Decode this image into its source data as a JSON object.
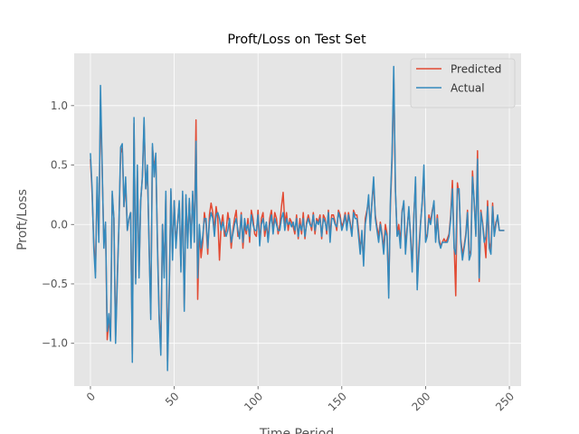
{
  "chart_data": {
    "type": "line",
    "title": "Proft/Loss on Test Set",
    "x_label": "Time Period",
    "y_label": "Proft/Loss",
    "x": [
      0,
      1,
      2,
      3,
      4,
      5,
      6,
      7,
      8,
      9,
      10,
      11,
      12,
      13,
      14,
      15,
      16,
      17,
      18,
      19,
      20,
      21,
      22,
      23,
      24,
      25,
      26,
      27,
      28,
      29,
      30,
      31,
      32,
      33,
      34,
      35,
      36,
      37,
      38,
      39,
      40,
      41,
      42,
      43,
      44,
      45,
      46,
      47,
      48,
      49,
      50,
      51,
      52,
      53,
      54,
      55,
      56,
      57,
      58,
      59,
      60,
      61,
      62,
      63,
      64,
      65,
      66,
      67,
      68,
      69,
      70,
      71,
      72,
      73,
      74,
      75,
      76,
      77,
      78,
      79,
      80,
      81,
      82,
      83,
      84,
      85,
      86,
      87,
      88,
      89,
      90,
      91,
      92,
      93,
      94,
      95,
      96,
      97,
      98,
      99,
      100,
      101,
      102,
      103,
      104,
      105,
      106,
      107,
      108,
      109,
      110,
      111,
      112,
      113,
      114,
      115,
      116,
      117,
      118,
      119,
      120,
      121,
      122,
      123,
      124,
      125,
      126,
      127,
      128,
      129,
      130,
      131,
      132,
      133,
      134,
      135,
      136,
      137,
      138,
      139,
      140,
      141,
      142,
      143,
      144,
      145,
      146,
      147,
      148,
      149,
      150,
      151,
      152,
      153,
      154,
      155,
      156,
      157,
      158,
      159,
      160,
      161,
      162,
      163,
      164,
      165,
      166,
      167,
      168,
      169,
      170,
      171,
      172,
      173,
      174,
      175,
      176,
      177,
      178,
      179,
      180,
      181,
      182,
      183,
      184,
      185,
      186,
      187,
      188,
      189,
      190,
      191,
      192,
      193,
      194,
      195,
      196,
      197,
      198,
      199,
      200,
      201,
      202,
      203,
      204,
      205,
      206,
      207,
      208,
      209,
      210,
      211,
      212,
      213,
      214,
      215,
      216,
      217,
      218,
      219,
      220,
      221,
      222,
      223,
      224,
      225,
      226,
      227,
      228,
      229,
      230,
      231,
      232,
      233,
      234,
      235,
      236,
      237,
      238,
      239,
      240,
      241,
      242,
      243,
      244,
      245,
      246,
      247
    ],
    "series": [
      {
        "name": "Predicted",
        "color": "#E24A33",
        "values": [
          0.55,
          0.25,
          -0.15,
          -0.4,
          0.35,
          -0.1,
          1.05,
          0.45,
          -0.15,
          0.0,
          -0.97,
          -0.8,
          -0.95,
          0.25,
          0.05,
          -0.95,
          -0.45,
          0.0,
          0.6,
          0.65,
          0.15,
          0.35,
          -0.05,
          0.05,
          0.1,
          -1.1,
          0.85,
          -0.45,
          0.45,
          -0.4,
          0.2,
          0.4,
          0.85,
          0.3,
          0.45,
          -0.15,
          -0.75,
          0.65,
          0.5,
          0.55,
          -0.15,
          -0.75,
          -1.05,
          0.0,
          -0.4,
          0.25,
          -1.15,
          -0.55,
          0.28,
          -0.25,
          0.2,
          -0.15,
          0.0,
          0.18,
          -0.35,
          0.25,
          -0.7,
          0.22,
          -0.15,
          0.2,
          -0.15,
          0.25,
          -0.1,
          0.88,
          -0.63,
          -0.05,
          -0.28,
          -0.15,
          0.1,
          0.0,
          -0.25,
          0.08,
          0.18,
          0.1,
          -0.05,
          0.15,
          0.05,
          -0.3,
          0.0,
          0.08,
          -0.1,
          -0.05,
          0.1,
          0.0,
          -0.2,
          -0.05,
          0.05,
          0.12,
          -0.1,
          -0.08,
          0.1,
          -0.2,
          0.0,
          -0.08,
          0.05,
          -0.15,
          0.12,
          0.05,
          -0.08,
          -0.1,
          0.12,
          -0.15,
          0.05,
          0.1,
          -0.1,
          0.0,
          -0.12,
          0.05,
          0.12,
          -0.05,
          0.1,
          0.05,
          -0.08,
          0.0,
          0.15,
          0.27,
          0.0,
          0.1,
          -0.05,
          0.05,
          0.02,
          -0.02,
          -0.08,
          0.08,
          -0.12,
          0.05,
          -0.08,
          0.1,
          -0.12,
          0.02,
          0.08,
          0.02,
          -0.05,
          0.1,
          -0.08,
          0.05,
          0.02,
          0.08,
          -0.12,
          0.08,
          0.05,
          -0.08,
          0.12,
          -0.1,
          0.08,
          0.08,
          0.02,
          -0.05,
          0.12,
          0.08,
          -0.02,
          0.02,
          0.1,
          -0.02,
          0.1,
          0.02,
          -0.08,
          0.12,
          0.08,
          0.08,
          -0.05,
          -0.2,
          -0.1,
          -0.3,
          0.05,
          0.12,
          0.2,
          0.0,
          0.18,
          0.35,
          0.08,
          -0.02,
          -0.1,
          0.02,
          -0.08,
          -0.2,
          0.0,
          -0.08,
          -0.55,
          0.15,
          0.55,
          1.25,
          0.28,
          -0.08,
          0.0,
          -0.15,
          0.12,
          0.18,
          -0.2,
          -0.02,
          0.12,
          -0.08,
          -0.35,
          0.08,
          0.35,
          -0.5,
          -0.2,
          0.02,
          0.18,
          0.45,
          -0.12,
          -0.08,
          0.08,
          0.02,
          0.12,
          0.18,
          -0.12,
          0.08,
          -0.12,
          -0.18,
          -0.15,
          -0.12,
          -0.15,
          -0.12,
          -0.08,
          0.08,
          0.37,
          -0.15,
          -0.6,
          0.35,
          0.25,
          -0.12,
          -0.25,
          -0.18,
          -0.08,
          0.12,
          -0.25,
          -0.22,
          0.45,
          0.18,
          -0.08,
          0.62,
          -0.48,
          0.12,
          0.02,
          -0.12,
          -0.28,
          0.2,
          -0.15,
          -0.22,
          0.18,
          -0.08,
          0.02,
          0.05,
          -0.05,
          -0.05,
          -0.05,
          -0.05
        ]
      },
      {
        "name": "Actual",
        "color": "#348ABD",
        "values": [
          0.6,
          0.3,
          -0.2,
          -0.45,
          0.4,
          -0.15,
          1.17,
          0.5,
          -0.2,
          0.02,
          -0.9,
          -0.75,
          -0.98,
          0.28,
          0.05,
          -1.0,
          -0.5,
          0.0,
          0.65,
          0.68,
          0.15,
          0.4,
          -0.05,
          0.05,
          0.1,
          -1.16,
          0.9,
          -0.5,
          0.5,
          -0.45,
          0.2,
          0.4,
          0.9,
          0.3,
          0.5,
          -0.2,
          -0.8,
          0.68,
          0.4,
          0.6,
          -0.2,
          -0.8,
          -1.1,
          0.0,
          -0.45,
          0.28,
          -1.23,
          -0.6,
          0.3,
          -0.3,
          0.2,
          -0.2,
          0.0,
          0.2,
          -0.4,
          0.28,
          -0.73,
          0.25,
          -0.2,
          0.22,
          -0.2,
          0.28,
          -0.15,
          0.7,
          -0.45,
          0.0,
          -0.2,
          -0.1,
          0.05,
          0.05,
          -0.2,
          0.02,
          0.1,
          0.05,
          -0.1,
          0.08,
          0.1,
          0.05,
          -0.05,
          0.02,
          -0.05,
          -0.1,
          -0.05,
          0.05,
          -0.15,
          -0.08,
          0.0,
          0.05,
          -0.05,
          -0.12,
          0.08,
          -0.15,
          0.05,
          -0.05,
          0.0,
          -0.1,
          0.08,
          0.0,
          -0.05,
          -0.05,
          0.08,
          -0.18,
          0.0,
          0.05,
          -0.05,
          0.02,
          -0.15,
          0.0,
          0.08,
          -0.08,
          0.05,
          0.0,
          -0.05,
          -0.05,
          0.05,
          0.1,
          -0.05,
          0.05,
          0.0,
          0.02,
          -0.02,
          0.02,
          -0.05,
          0.05,
          -0.1,
          0.0,
          -0.05,
          0.05,
          -0.1,
          0.0,
          0.05,
          0.0,
          -0.02,
          0.08,
          -0.05,
          0.03,
          0.0,
          0.05,
          -0.1,
          0.05,
          0.02,
          -0.05,
          0.1,
          -0.15,
          0.05,
          0.05,
          0.0,
          -0.02,
          0.1,
          0.05,
          -0.05,
          0.0,
          0.08,
          -0.05,
          0.08,
          0.0,
          -0.1,
          0.1,
          0.05,
          0.05,
          -0.1,
          -0.25,
          -0.05,
          -0.35,
          0.0,
          0.1,
          0.25,
          -0.05,
          0.2,
          0.4,
          0.05,
          -0.05,
          -0.15,
          0.0,
          -0.1,
          -0.25,
          -0.05,
          -0.1,
          -0.62,
          0.2,
          0.6,
          1.33,
          0.3,
          -0.1,
          -0.05,
          -0.2,
          0.1,
          0.2,
          -0.25,
          -0.05,
          0.15,
          -0.1,
          -0.4,
          0.05,
          0.4,
          -0.55,
          -0.25,
          0.0,
          0.2,
          0.5,
          -0.15,
          -0.1,
          0.05,
          0.0,
          0.1,
          0.2,
          -0.15,
          0.05,
          -0.15,
          -0.2,
          -0.15,
          -0.15,
          -0.15,
          -0.15,
          -0.1,
          0.05,
          0.3,
          -0.2,
          -0.25,
          0.3,
          0.3,
          -0.15,
          -0.3,
          -0.2,
          -0.1,
          0.1,
          -0.3,
          -0.25,
          0.4,
          0.2,
          -0.1,
          0.55,
          -0.45,
          0.1,
          0.0,
          -0.15,
          -0.1,
          0.15,
          -0.2,
          -0.25,
          0.15,
          -0.1,
          0.0,
          0.08,
          -0.05,
          -0.05,
          -0.05,
          -0.05
        ]
      }
    ],
    "xlim": [
      -9.7,
      257
    ],
    "ylim": [
      -1.36,
      1.44
    ],
    "xticks": [
      0,
      50,
      100,
      150,
      200,
      250
    ],
    "yticks": [
      {
        "value": -1.0,
        "label": "−1.0"
      },
      {
        "value": -0.5,
        "label": "−0.5"
      },
      {
        "value": 0.0,
        "label": "0.0"
      },
      {
        "value": 0.5,
        "label": "0.5"
      },
      {
        "value": 1.0,
        "label": "1.0"
      }
    ],
    "grid": true,
    "legend": "upper right"
  }
}
